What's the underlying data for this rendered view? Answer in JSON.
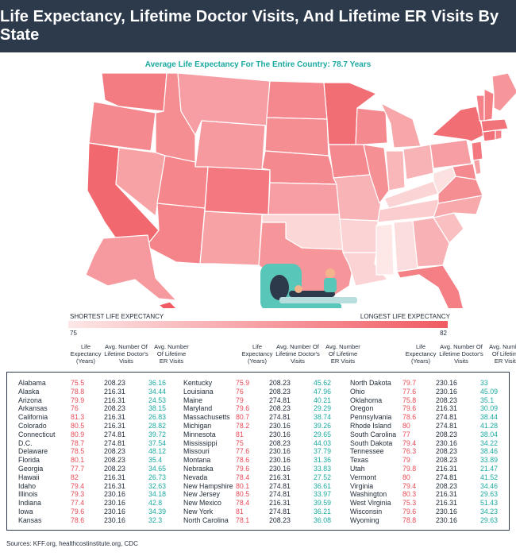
{
  "title": "Life Expectancy, Lifetime Doctor Visits, And Lifetime ER Visits By State",
  "subtitle": "Average Life Expectancy For The Entire Country: 78.7 Years",
  "colors": {
    "header_bg": "#2c3a4c",
    "accent_teal": "#1aa9a0",
    "accent_red": "#e64a57",
    "low": "#fde7e7",
    "high": "#f05a62"
  },
  "legend": {
    "short_label": "SHORTEST LIFE EXPECTANCY",
    "long_label": "LONGEST LIFE EXPECTANCY",
    "min": "75",
    "max": "82"
  },
  "columns": {
    "life": "Life Expectancy (Years)",
    "doctor": "Avg. Number Of Lifetime Doctor's Visits",
    "er": "Avg. Number Of Lifetime ER Visits"
  },
  "table": [
    {
      "state": "Alabama",
      "life": "75.5",
      "doctor": "208.23",
      "er": "36.16"
    },
    {
      "state": "Alaska",
      "life": "78.8",
      "doctor": "216.31",
      "er": "34.44"
    },
    {
      "state": "Arizona",
      "life": "79.9",
      "doctor": "216.31",
      "er": "24.53"
    },
    {
      "state": "Arkansas",
      "life": "76",
      "doctor": "208.23",
      "er": "38.15"
    },
    {
      "state": "California",
      "life": "81.3",
      "doctor": "216.31",
      "er": "26.83"
    },
    {
      "state": "Colorado",
      "life": "80.5",
      "doctor": "216.31",
      "er": "28.82"
    },
    {
      "state": "Connecticut",
      "life": "80.9",
      "doctor": "274.81",
      "er": "39.72"
    },
    {
      "state": "D.C.",
      "life": "78.7",
      "doctor": "274.81",
      "er": "37.54"
    },
    {
      "state": "Delaware",
      "life": "78.5",
      "doctor": "208.23",
      "er": "48.12"
    },
    {
      "state": "Florida",
      "life": "80.1",
      "doctor": "208.23",
      "er": "35.4"
    },
    {
      "state": "Georgia",
      "life": "77.7",
      "doctor": "208.23",
      "er": "34.65"
    },
    {
      "state": "Hawaii",
      "life": "82",
      "doctor": "216.31",
      "er": "26.73"
    },
    {
      "state": "Idaho",
      "life": "79.4",
      "doctor": "216.31",
      "er": "32.63"
    },
    {
      "state": "Illinois",
      "life": "79.3",
      "doctor": "230.16",
      "er": "34.18"
    },
    {
      "state": "Indiana",
      "life": "77.4",
      "doctor": "230.16",
      "er": "42.8"
    },
    {
      "state": "Iowa",
      "life": "79.6",
      "doctor": "230.16",
      "er": "34.39"
    },
    {
      "state": "Kansas",
      "life": "78.6",
      "doctor": "230.16",
      "er": "32.3"
    },
    {
      "state": "Kentucky",
      "life": "75.9",
      "doctor": "208.23",
      "er": "45.62"
    },
    {
      "state": "Louisiana",
      "life": "76",
      "doctor": "208.23",
      "er": "47.96"
    },
    {
      "state": "Maine",
      "life": "79",
      "doctor": "274.81",
      "er": "40.21"
    },
    {
      "state": "Maryland",
      "life": "79.6",
      "doctor": "208.23",
      "er": "29.29"
    },
    {
      "state": "Massachusetts",
      "life": "80.7",
      "doctor": "274.81",
      "er": "38.74"
    },
    {
      "state": "Michigan",
      "life": "78.2",
      "doctor": "230.16",
      "er": "39.26"
    },
    {
      "state": "Minnesota",
      "life": "81",
      "doctor": "230.16",
      "er": "29.65"
    },
    {
      "state": "Mississippi",
      "life": "75",
      "doctor": "208.23",
      "er": "44.03"
    },
    {
      "state": "Missouri",
      "life": "77.6",
      "doctor": "230.16",
      "er": "37.79"
    },
    {
      "state": "Montana",
      "life": "78.6",
      "doctor": "230.16",
      "er": "31.36"
    },
    {
      "state": "Nebraska",
      "life": "79.6",
      "doctor": "230.16",
      "er": "33.83"
    },
    {
      "state": "Nevada",
      "life": "78.4",
      "doctor": "216.31",
      "er": "27.52"
    },
    {
      "state": "New Hampshire",
      "life": "80.1",
      "doctor": "274.81",
      "er": "36.61"
    },
    {
      "state": "New Jersey",
      "life": "80.5",
      "doctor": "274.81",
      "er": "33.97"
    },
    {
      "state": "New Mexico",
      "life": "78.4",
      "doctor": "216.31",
      "er": "39.59"
    },
    {
      "state": "New York",
      "life": "81",
      "doctor": "274.81",
      "er": "36.21"
    },
    {
      "state": "North Carolina",
      "life": "78.1",
      "doctor": "208.23",
      "er": "36.08"
    },
    {
      "state": "North Dakota",
      "life": "79.7",
      "doctor": "230.16",
      "er": "33"
    },
    {
      "state": "Ohio",
      "life": "77.6",
      "doctor": "230.16",
      "er": "45.09"
    },
    {
      "state": "Oklahoma",
      "life": "75.8",
      "doctor": "208.23",
      "er": "35.1"
    },
    {
      "state": "Oregon",
      "life": "79.6",
      "doctor": "216.31",
      "er": "30.09"
    },
    {
      "state": "Pennsylvania",
      "life": "78.6",
      "doctor": "274.81",
      "er": "38.44"
    },
    {
      "state": "Rhode Island",
      "life": "80",
      "doctor": "274.81",
      "er": "41.28"
    },
    {
      "state": "South Carolina",
      "life": "77",
      "doctor": "208.23",
      "er": "38.04"
    },
    {
      "state": "South Dakota",
      "life": "79.4",
      "doctor": "230.16",
      "er": "34.22"
    },
    {
      "state": "Tennessee",
      "life": "76.3",
      "doctor": "208.23",
      "er": "38.46"
    },
    {
      "state": "Texas",
      "life": "79",
      "doctor": "208.23",
      "er": "33.89"
    },
    {
      "state": "Utah",
      "life": "79.8",
      "doctor": "216.31",
      "er": "21.47"
    },
    {
      "state": "Vermont",
      "life": "80",
      "doctor": "274.81",
      "er": "41.52"
    },
    {
      "state": "Virginia",
      "life": "79.4",
      "doctor": "208.23",
      "er": "34.46"
    },
    {
      "state": "Washington",
      "life": "80.3",
      "doctor": "216.31",
      "er": "29.63"
    },
    {
      "state": "West Virginia",
      "life": "75.3",
      "doctor": "216.31",
      "er": "51.43"
    },
    {
      "state": "Wisconsin",
      "life": "79.6",
      "doctor": "230.16",
      "er": "34.23"
    },
    {
      "state": "Wyoming",
      "life": "78.8",
      "doctor": "230.16",
      "er": "29.63"
    }
  ],
  "sources": "Sources: KFF.org, healthcostinstitute.org, CDC"
}
